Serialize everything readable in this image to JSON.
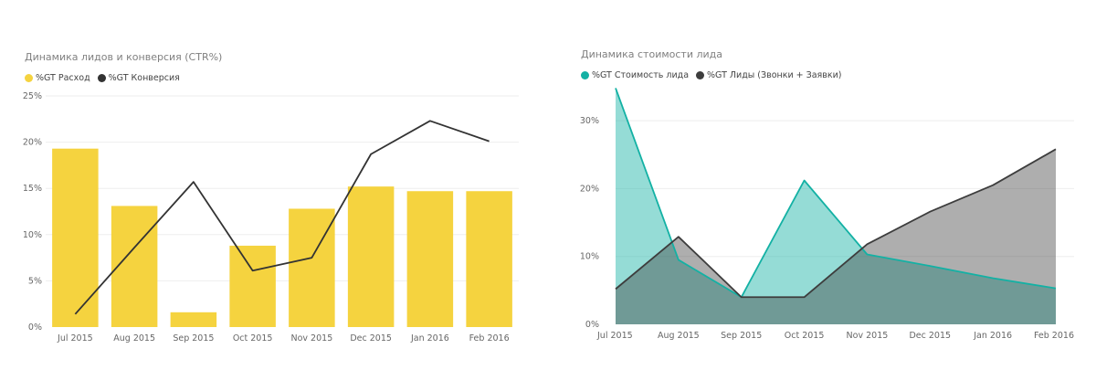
{
  "charts": {
    "left": {
      "title": "Динамика лидов и конверсия (CTR%)",
      "legend": [
        {
          "label": "%GT Расход",
          "color": "#f5d33f"
        },
        {
          "label": "%GT Конверсия",
          "color": "#333333"
        }
      ]
    },
    "right": {
      "title": "Динамика стоимости лида",
      "legend": [
        {
          "label": "%GT Стоимость лида",
          "color": "#13b1a4"
        },
        {
          "label": "%GT Лиды (Звонки + Заявки)",
          "color": "#3d3d3d"
        }
      ]
    }
  },
  "chart_data": [
    {
      "type": "bar",
      "title": "Динамика лидов и конверсия (CTR%)",
      "categories": [
        "Jul 2015",
        "Aug 2015",
        "Sep 2015",
        "Oct 2015",
        "Nov 2015",
        "Dec 2015",
        "Jan 2016",
        "Feb 2016"
      ],
      "yticks": [
        "0%",
        "5%",
        "10%",
        "15%",
        "20%",
        "25%"
      ],
      "ylim": [
        0,
        25
      ],
      "series": [
        {
          "name": "%GT Расход",
          "type": "bar",
          "color": "#f5d33f",
          "values": [
            19.3,
            13.1,
            1.6,
            8.8,
            12.8,
            15.2,
            14.7,
            14.7
          ]
        },
        {
          "name": "%GT Конверсия",
          "type": "line",
          "color": "#333333",
          "values": [
            1.4,
            8.6,
            15.7,
            6.1,
            7.5,
            18.7,
            22.3,
            20.1
          ]
        }
      ],
      "grid": true,
      "legend_position": "top-left"
    },
    {
      "type": "area",
      "title": "Динамика стоимости лида",
      "categories": [
        "Jul 2015",
        "Aug 2015",
        "Sep 2015",
        "Oct 2015",
        "Nov 2015",
        "Dec 2015",
        "Jan 2016",
        "Feb 2016"
      ],
      "yticks": [
        "0%",
        "10%",
        "20%",
        "30%"
      ],
      "ylim": [
        0,
        35
      ],
      "series": [
        {
          "name": "%GT Стоимость лида",
          "color": "#13b1a4",
          "values": [
            34.8,
            9.5,
            4.0,
            21.2,
            10.3,
            8.6,
            6.8,
            5.3
          ]
        },
        {
          "name": "%GT Лиды (Звонки + Заявки)",
          "color": "#3d3d3d",
          "values": [
            5.2,
            12.9,
            4.0,
            4.0,
            11.8,
            16.6,
            20.5,
            25.8
          ]
        }
      ],
      "grid": true,
      "legend_position": "top-left"
    }
  ]
}
